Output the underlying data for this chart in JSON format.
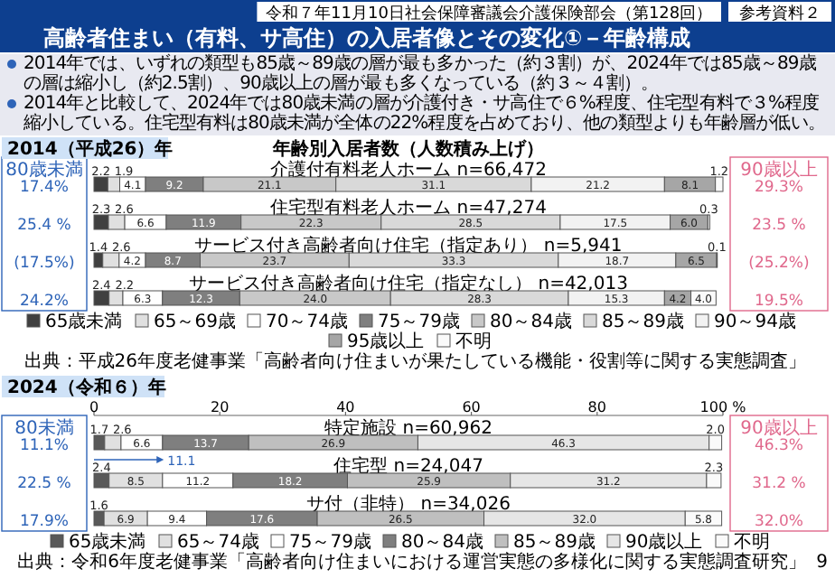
{
  "chart_data": [
    {
      "type": "other",
      "title": "高齢者住まい（有料、サ高住）の入居者像とその変化①－年齢構成",
      "annotations": [
        "令和７年11月10日社会保障審議会介護保険部会（第128回）",
        "参考資料２",
        "2014年では、いずれの類型も85歳～89歳の層が最も多かった（約３割）が、2024年では85歳～89歳の層は縮小し（約2.5割）、90歳以上の層が最も多くなっている（約３～４割）。",
        "2014年と比較して、2024年では80歳未満の層が介護付き・サ高住で６%程度、住宅型有料で３%程度縮小している。住宅型有料は80歳未満が全体の22%程度を占めており、他の類型よりも年齢層が低い。",
        "9"
      ]
    },
    {
      "type": "bar",
      "title": "年齢別入居者数（人数積み上げ）",
      "orientation": "horizontal",
      "stacked": true,
      "legend": "bottom",
      "categories": [
        "介護付有料老人ホーム n=66,472",
        "住宅型有料老人ホーム n=47,274",
        "サービス付き高齢者向け住宅（指定あり） n=5,941",
        "サービス付き高齢者向け住宅（指定なし） n=42,013"
      ],
      "series": [
        {
          "name": "65歳未満",
          "color": "#404040",
          "values": [
            2.2,
            2.3,
            1.4,
            2.4
          ],
          "value_labels": [
            "2.2",
            "2.3",
            "1.4",
            "2.4"
          ]
        },
        {
          "name": "65～69歳",
          "color": "#e0e0e0",
          "values": [
            1.9,
            2.6,
            2.6,
            2.2
          ],
          "value_labels": [
            "1.9",
            "2.6",
            "2.6",
            "2.2"
          ]
        },
        {
          "name": "70～74歳",
          "color": "#ffffff",
          "values": [
            4.1,
            6.6,
            4.2,
            6.3
          ],
          "value_labels": [
            "4.1",
            "6.6",
            "4.2",
            "6.3"
          ]
        },
        {
          "name": "75～79歳",
          "color": "#7f7f7f",
          "values": [
            9.2,
            11.9,
            8.7,
            12.3
          ],
          "value_labels": [
            "9.2",
            "11.9",
            "8.7",
            "12.3"
          ]
        },
        {
          "name": "80～84歳",
          "color": "#c8c8c8",
          "values": [
            21.1,
            22.3,
            23.7,
            24.0
          ],
          "value_labels": [
            "21.1",
            "22.3",
            "23.7",
            "24.0"
          ]
        },
        {
          "name": "85～89歳",
          "color": "#d9d9d9",
          "values": [
            31.1,
            28.5,
            33.3,
            28.3
          ],
          "value_labels": [
            "31.1",
            "28.5",
            "33.3",
            "28.3"
          ]
        },
        {
          "name": "90～94歳",
          "color": "#f2f2f2",
          "values": [
            21.2,
            17.5,
            18.7,
            15.3
          ],
          "value_labels": [
            "21.2",
            "17.5",
            "18.7",
            "15.3"
          ]
        },
        {
          "name": "95歳以上",
          "color": "#a6a6a6",
          "values": [
            8.1,
            6.0,
            6.5,
            4.2
          ],
          "value_labels": [
            "8.1",
            "6.0",
            "6.5",
            "4.2"
          ]
        },
        {
          "name": "不明",
          "color": "#fafafa",
          "values": [
            1.2,
            0.3,
            0.1,
            4.0
          ],
          "value_labels": [
            "1.2",
            "0.3",
            "0.1",
            "4.0"
          ]
        }
      ],
      "annotations": [
        "2014（平成26）年",
        "80歳未満",
        "17.4%",
        "25.4 %",
        "(17.5%)",
        "24.2%",
        "90歳以上",
        "29.3%",
        "23.5 %",
        "(25.2%)",
        "19.5%",
        "出典：平成26年度老健事業「高齢者向け住まいが果たしている機能・役割等に関する実態調査」"
      ]
    },
    {
      "type": "bar",
      "orientation": "horizontal",
      "stacked": true,
      "legend": "bottom",
      "categories": [
        "特定施設 n=60,962",
        "住宅型 n=24,047",
        "サ付（非特） n=34,026"
      ],
      "xlim": [
        0,
        100
      ],
      "xticks": [
        0,
        20,
        40,
        60,
        80,
        {
          "value": 100,
          "label": "100 %"
        }
      ],
      "series": [
        {
          "name": "65歳未満",
          "color": "#595959",
          "values": [
            1.7,
            2.4,
            1.6
          ],
          "value_labels": [
            "1.7",
            "2.4",
            "1.6"
          ]
        },
        {
          "name": "65～74歳",
          "color": "#e0e0e0",
          "values": [
            2.6,
            8.5,
            6.9
          ],
          "value_labels": [
            "2.6",
            "8.5",
            "6.9"
          ]
        },
        {
          "name": "75～79歳",
          "color": "#ffffff",
          "values": [
            6.6,
            11.2,
            9.4
          ],
          "value_labels": [
            "6.6",
            "11.2",
            "9.4"
          ]
        },
        {
          "name": "80～84歳",
          "color": "#7f7f7f",
          "values": [
            13.7,
            18.2,
            17.6
          ],
          "value_labels": [
            "13.7",
            "18.2",
            "17.6"
          ]
        },
        {
          "name": "85～89歳",
          "color": "#bfbfbf",
          "values": [
            26.9,
            25.9,
            26.5
          ],
          "value_labels": [
            "26.9",
            "25.9",
            "26.5"
          ]
        },
        {
          "name": "90歳以上",
          "color": "#e6e6e6",
          "values": [
            46.3,
            31.2,
            32.0
          ],
          "value_labels": [
            "46.3",
            "31.2",
            "32.0"
          ]
        },
        {
          "name": "不明",
          "color": "#fafafa",
          "values": [
            2.0,
            2.3,
            5.8
          ],
          "value_labels": [
            "2.0",
            "2.3",
            "5.8"
          ]
        }
      ],
      "annotations": [
        "2024（令和６）年",
        "80未満",
        "11.1%",
        "22.5 %",
        "17.9%",
        "90歳以上",
        "46.3%",
        "31.2 %",
        "32.0%",
        {
          "text": "11.1",
          "x": 11.1,
          "y": "住宅型 n=24,047"
        },
        "出典：令和6年度老健事業「高齢者向け住まいにおける運営実態の多様化に関する実態調査研究」"
      ]
    }
  ]
}
